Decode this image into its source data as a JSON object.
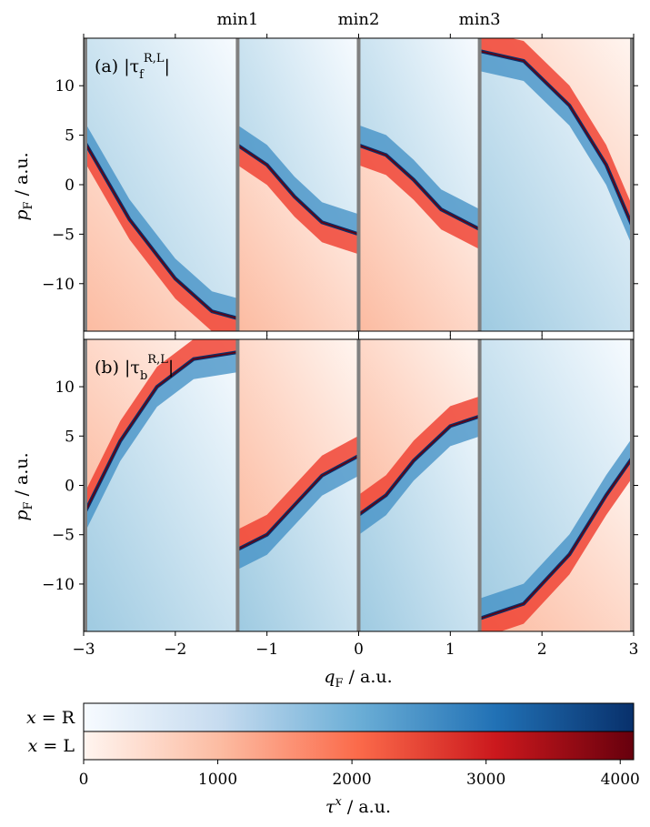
{
  "chart_data": [
    {
      "type": "heatmap",
      "panel_label": "(a) |τ_f^{R,L}|",
      "panel_label_main": "(a) |τ",
      "panel_label_sub": "f",
      "panel_label_sup": "R,L",
      "ylabel": "p_F / a.u.",
      "xlim": [
        -3,
        3
      ],
      "ylim": [
        -14.8,
        14.8
      ],
      "yticks": [
        -10,
        -5,
        0,
        5,
        10
      ],
      "ytick_labels": [
        "−10",
        "−5",
        "0",
        "5",
        "10"
      ],
      "legend": "x = R (blue), x = L (red)",
      "boundary_curves": [
        {
          "segment": [
            -3.0,
            -1.32
          ],
          "points": [
            [
              -3.0,
              4.5
            ],
            [
              -2.5,
              -3.5
            ],
            [
              -2.0,
              -9.5
            ],
            [
              -1.6,
              -12.8
            ],
            [
              -1.32,
              -13.5
            ]
          ]
        },
        {
          "segment": [
            -1.32,
            0.0
          ],
          "points": [
            [
              -1.32,
              4.0
            ],
            [
              -1.0,
              2.0
            ],
            [
              -0.7,
              -1.2
            ],
            [
              -0.4,
              -3.8
            ],
            [
              0.0,
              -5.0
            ]
          ]
        },
        {
          "segment": [
            0.0,
            1.32
          ],
          "points": [
            [
              0.0,
              4.0
            ],
            [
              0.3,
              3.0
            ],
            [
              0.6,
              0.5
            ],
            [
              0.9,
              -2.5
            ],
            [
              1.32,
              -4.5
            ]
          ]
        },
        {
          "segment": [
            1.32,
            3.0
          ],
          "points": [
            [
              1.32,
              13.5
            ],
            [
              1.8,
              12.5
            ],
            [
              2.3,
              8.0
            ],
            [
              2.7,
              2.0
            ],
            [
              3.0,
              -4.5
            ]
          ]
        }
      ]
    },
    {
      "type": "heatmap",
      "panel_label": "(b) |τ_b^{R,L}|",
      "panel_label_main": "(b) |τ",
      "panel_label_sub": "b",
      "panel_label_sup": "R,L",
      "ylabel": "p_F / a.u.",
      "xlabel": "q_F / a.u.",
      "xlim": [
        -3,
        3
      ],
      "ylim": [
        -14.8,
        14.8
      ],
      "xticks": [
        -3,
        -2,
        -1,
        0,
        1,
        2,
        3
      ],
      "xtick_labels": [
        "−3",
        "−2",
        "−1",
        "0",
        "1",
        "2",
        "3"
      ],
      "yticks": [
        -10,
        -5,
        0,
        5,
        10
      ],
      "ytick_labels": [
        "−10",
        "−5",
        "0",
        "5",
        "10"
      ],
      "boundary_curves": [
        {
          "segment": [
            -3.0,
            -1.32
          ],
          "points": [
            [
              -3.0,
              -3.0
            ],
            [
              -2.6,
              4.5
            ],
            [
              -2.2,
              10.0
            ],
            [
              -1.8,
              12.8
            ],
            [
              -1.32,
              13.5
            ]
          ]
        },
        {
          "segment": [
            -1.32,
            0.0
          ],
          "points": [
            [
              -1.32,
              -6.5
            ],
            [
              -1.0,
              -5.0
            ],
            [
              -0.7,
              -2.0
            ],
            [
              -0.4,
              1.0
            ],
            [
              0.0,
              3.0
            ]
          ]
        },
        {
          "segment": [
            0.0,
            1.32
          ],
          "points": [
            [
              0.0,
              -3.0
            ],
            [
              0.3,
              -1.0
            ],
            [
              0.6,
              2.5
            ],
            [
              1.0,
              6.0
            ],
            [
              1.32,
              7.0
            ]
          ]
        },
        {
          "segment": [
            1.32,
            3.0
          ],
          "points": [
            [
              1.32,
              -13.5
            ],
            [
              1.8,
              -12.0
            ],
            [
              2.3,
              -7.0
            ],
            [
              2.7,
              -1.0
            ],
            [
              3.0,
              3.0
            ]
          ]
        }
      ]
    }
  ],
  "minima": {
    "labels": [
      "min1",
      "min2",
      "min3"
    ],
    "positions": [
      -1.32,
      0.0,
      1.32
    ]
  },
  "colorbar": {
    "rows": [
      {
        "label": "x = R",
        "label_var": "x",
        "label_val": "R",
        "color_low": "#f7fbff",
        "color_high": "#08306b"
      },
      {
        "label": "x = L",
        "label_var": "x",
        "label_val": "L",
        "color_low": "#fff5f0",
        "color_high": "#67000d"
      }
    ],
    "range": [
      0,
      4100
    ],
    "ticks": [
      0,
      1000,
      2000,
      3000,
      4000
    ],
    "tick_labels": [
      "0",
      "1000",
      "2000",
      "3000",
      "4000"
    ],
    "xlabel": "τ^x / a.u."
  },
  "colors": {
    "separator": "#808080",
    "blue_dark": "#08306b",
    "blue_mid": "#3d8dc4",
    "red_dark": "#67000d",
    "red_mid": "#ef3b2c"
  }
}
